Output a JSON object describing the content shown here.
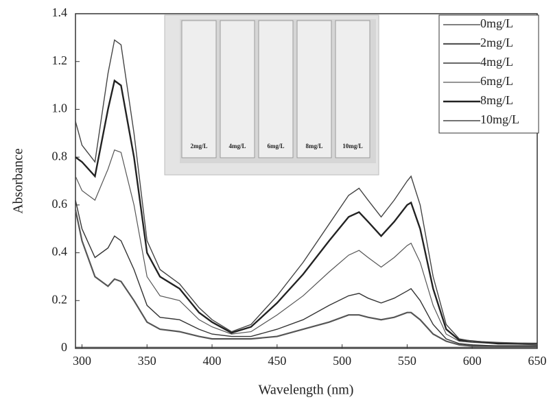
{
  "chart_data": {
    "type": "line",
    "x_label": "Wavelength (nm)",
    "y_label": "Absorbance",
    "x": [
      295,
      300,
      310,
      320,
      325,
      330,
      340,
      350,
      360,
      375,
      390,
      400,
      415,
      430,
      450,
      470,
      490,
      505,
      513,
      520,
      530,
      540,
      550,
      553,
      560,
      570,
      580,
      590,
      600,
      620,
      650
    ],
    "series": [
      {
        "name": "0mg/L",
        "color": "#333333",
        "values": [
          0.005,
          0.005,
          0.005,
          0.005,
          0.005,
          0.005,
          0.005,
          0.005,
          0.005,
          0.005,
          0.005,
          0.005,
          0.005,
          0.005,
          0.005,
          0.005,
          0.005,
          0.005,
          0.005,
          0.005,
          0.005,
          0.005,
          0.005,
          0.005,
          0.005,
          0.005,
          0.005,
          0.005,
          0.005,
          0.005,
          0.005
        ]
      },
      {
        "name": "2mg/L",
        "color": "#555555",
        "values": [
          0.58,
          0.45,
          0.3,
          0.26,
          0.29,
          0.28,
          0.2,
          0.11,
          0.08,
          0.07,
          0.05,
          0.04,
          0.04,
          0.04,
          0.05,
          0.08,
          0.11,
          0.14,
          0.14,
          0.13,
          0.12,
          0.13,
          0.15,
          0.15,
          0.12,
          0.06,
          0.03,
          0.015,
          0.01,
          0.01,
          0.01
        ]
      },
      {
        "name": "4mg/L",
        "color": "#333333",
        "values": [
          0.62,
          0.5,
          0.38,
          0.42,
          0.47,
          0.45,
          0.33,
          0.18,
          0.13,
          0.12,
          0.08,
          0.06,
          0.05,
          0.05,
          0.08,
          0.12,
          0.18,
          0.22,
          0.23,
          0.21,
          0.19,
          0.21,
          0.24,
          0.25,
          0.2,
          0.1,
          0.04,
          0.02,
          0.015,
          0.01,
          0.01
        ]
      },
      {
        "name": "6mg/L",
        "color": "#555555",
        "values": [
          0.72,
          0.66,
          0.62,
          0.75,
          0.83,
          0.82,
          0.6,
          0.3,
          0.22,
          0.2,
          0.12,
          0.09,
          0.06,
          0.07,
          0.14,
          0.22,
          0.32,
          0.39,
          0.41,
          0.38,
          0.34,
          0.38,
          0.43,
          0.44,
          0.36,
          0.18,
          0.06,
          0.03,
          0.025,
          0.02,
          0.015
        ]
      },
      {
        "name": "8mg/L",
        "color": "#222222",
        "values": [
          0.8,
          0.78,
          0.72,
          1.0,
          1.12,
          1.1,
          0.8,
          0.4,
          0.3,
          0.25,
          0.15,
          0.11,
          0.065,
          0.09,
          0.19,
          0.31,
          0.45,
          0.55,
          0.57,
          0.53,
          0.47,
          0.53,
          0.6,
          0.61,
          0.5,
          0.25,
          0.08,
          0.035,
          0.03,
          0.02,
          0.02
        ]
      },
      {
        "name": "10mg/L",
        "color": "#444444",
        "values": [
          0.95,
          0.85,
          0.78,
          1.15,
          1.29,
          1.27,
          0.9,
          0.45,
          0.33,
          0.27,
          0.17,
          0.12,
          0.07,
          0.1,
          0.22,
          0.36,
          0.52,
          0.64,
          0.67,
          0.62,
          0.55,
          0.62,
          0.7,
          0.72,
          0.6,
          0.3,
          0.1,
          0.04,
          0.03,
          0.025,
          0.02
        ]
      }
    ],
    "xlim": [
      295,
      650
    ],
    "xticks": [
      300,
      350,
      400,
      450,
      500,
      550,
      600,
      650
    ],
    "ylim": [
      0,
      1.4
    ],
    "yticks": [
      0,
      0.2,
      0.4,
      0.6,
      0.8,
      {
        "value": 1,
        "label": "1.0"
      },
      1.2,
      1.4
    ],
    "legend": "top-right",
    "inset_labels": [
      "2mg/L",
      "4mg/L",
      "6mg/L",
      "8mg/L",
      "10mg/L"
    ]
  }
}
